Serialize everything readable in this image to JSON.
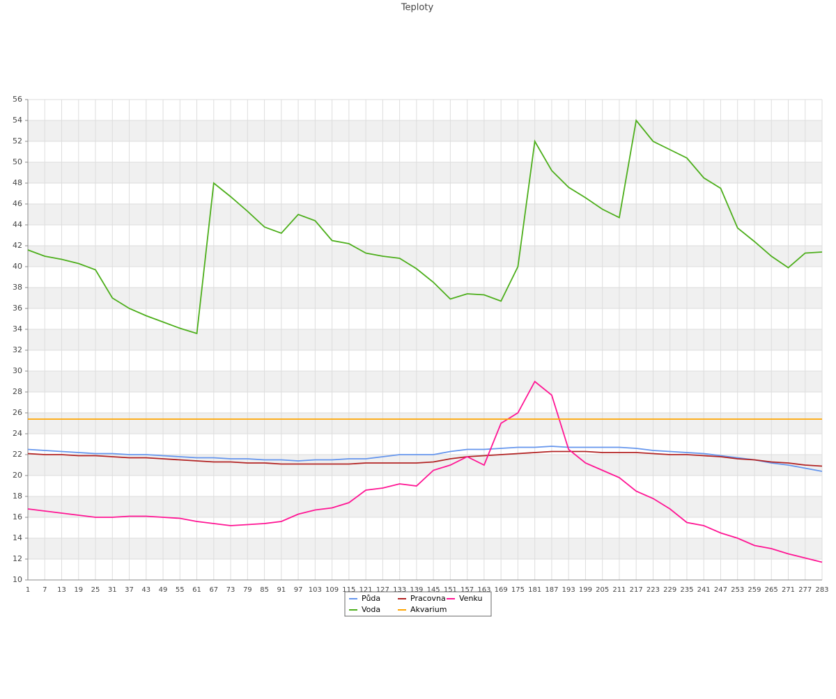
{
  "chart_data": {
    "type": "line",
    "title": "Teploty",
    "categories": [
      "1",
      "7",
      "13",
      "19",
      "25",
      "31",
      "37",
      "43",
      "49",
      "55",
      "61",
      "67",
      "73",
      "79",
      "85",
      "91",
      "97",
      "103",
      "109",
      "115",
      "121",
      "127",
      "133",
      "139",
      "145",
      "151",
      "157",
      "163",
      "169",
      "175",
      "181",
      "187",
      "193",
      "199",
      "205",
      "211",
      "217",
      "223",
      "229",
      "235",
      "241",
      "247",
      "253",
      "259",
      "265",
      "271",
      "277",
      "283"
    ],
    "series": [
      {
        "name": "Půda",
        "color": "#6495ed",
        "values": [
          22.5,
          22.4,
          22.3,
          22.2,
          22.1,
          22.1,
          22.0,
          22.0,
          21.9,
          21.8,
          21.7,
          21.7,
          21.6,
          21.6,
          21.5,
          21.5,
          21.4,
          21.5,
          21.5,
          21.6,
          21.6,
          21.8,
          22.0,
          22.0,
          22.0,
          22.3,
          22.5,
          22.5,
          22.6,
          22.7,
          22.7,
          22.8,
          22.7,
          22.7,
          22.7,
          22.7,
          22.6,
          22.4,
          22.3,
          22.2,
          22.1,
          21.9,
          21.7,
          21.5,
          21.2,
          21.0,
          20.7,
          20.4
        ]
      },
      {
        "name": "Pracovna",
        "color": "#b22222",
        "values": [
          22.1,
          22.0,
          22.0,
          21.9,
          21.9,
          21.8,
          21.7,
          21.7,
          21.6,
          21.5,
          21.4,
          21.3,
          21.3,
          21.2,
          21.2,
          21.1,
          21.1,
          21.1,
          21.1,
          21.1,
          21.2,
          21.2,
          21.2,
          21.2,
          21.3,
          21.6,
          21.8,
          21.9,
          22.0,
          22.1,
          22.2,
          22.3,
          22.3,
          22.3,
          22.2,
          22.2,
          22.2,
          22.1,
          22.0,
          22.0,
          21.9,
          21.8,
          21.6,
          21.5,
          21.3,
          21.2,
          21.0,
          20.9
        ]
      },
      {
        "name": "Venku",
        "color": "#ff1493",
        "values": [
          16.8,
          16.6,
          16.4,
          16.2,
          16.0,
          16.0,
          16.1,
          16.1,
          16.0,
          15.9,
          15.6,
          15.4,
          15.2,
          15.3,
          15.4,
          15.6,
          16.3,
          16.7,
          16.9,
          17.4,
          18.6,
          18.8,
          19.2,
          19.0,
          20.5,
          21.0,
          21.8,
          21.0,
          25.0,
          26,
          29.0,
          27.7,
          22.5,
          21.2,
          20.5,
          19.8,
          18.5,
          17.8,
          16.8,
          15.5,
          15.2,
          14.5,
          14.0,
          13.3,
          13.0,
          12.5,
          12.1,
          11.7
        ]
      },
      {
        "name": "Voda",
        "color": "#4cae1a",
        "values": [
          41.6,
          41.0,
          40.7,
          40.3,
          39.7,
          37.0,
          36.0,
          35.3,
          34.7,
          34.1,
          33.6,
          48,
          46.7,
          45.3,
          43.8,
          43.2,
          45.0,
          44.4,
          42.5,
          42.2,
          41.3,
          41.0,
          40.8,
          39.8,
          38.5,
          36.9,
          37.4,
          37.3,
          36.7,
          40,
          52,
          49.2,
          47.6,
          46.6,
          45.5,
          44.7,
          54.0,
          52.0,
          51.2,
          50.4,
          48.5,
          47.5,
          43.7,
          42.4,
          41.0,
          39.9,
          41.3,
          41.4
        ]
      },
      {
        "name": "Akvarium",
        "color": "#ffa500",
        "values": [
          25.4,
          25.4,
          25.4,
          25.4,
          25.4,
          25.4,
          25.4,
          25.4,
          25.4,
          25.4,
          25.4,
          25.4,
          25.4,
          25.4,
          25.4,
          25.4,
          25.4,
          25.4,
          25.4,
          25.4,
          25.4,
          25.4,
          25.4,
          25.4,
          25.4,
          25.4,
          25.4,
          25.4,
          25.4,
          25.4,
          25.4,
          25.4,
          25.4,
          25.4,
          25.4,
          25.4,
          25.4,
          25.4,
          25.4,
          25.4,
          25.4,
          25.4,
          25.4,
          25.4,
          25.4,
          25.4,
          25.4,
          25.4
        ]
      }
    ],
    "ylim": [
      10,
      56
    ],
    "yticks": [
      10,
      12,
      14,
      16,
      18,
      20,
      22,
      24,
      26,
      28,
      30,
      32,
      34,
      36,
      38,
      40,
      42,
      44,
      46,
      48,
      50,
      52,
      54,
      56
    ],
    "grid": true
  }
}
